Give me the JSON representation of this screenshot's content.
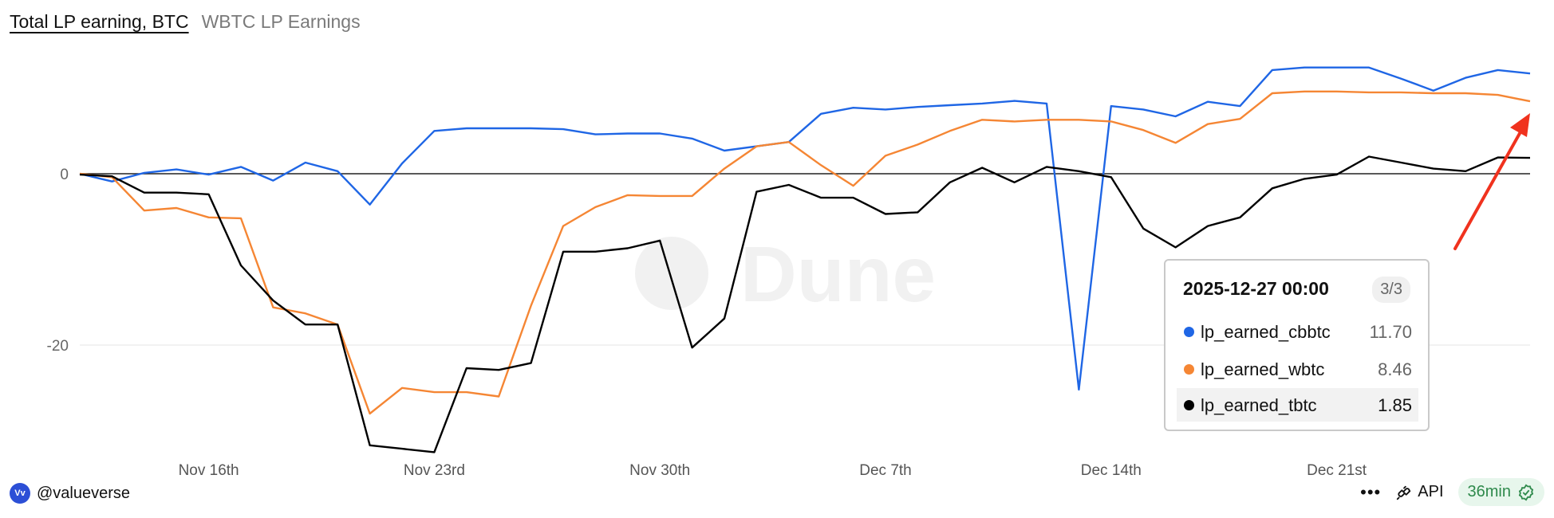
{
  "tabs": {
    "active": "Total LP earning, BTC",
    "other": "WBTC LP Earnings"
  },
  "watermark": "Dune",
  "tooltip": {
    "date": "2025-12-27 00:00",
    "page": "3/3",
    "rows": [
      {
        "name": "lp_earned_cbbtc",
        "value": "11.70",
        "color": "#1f66e5"
      },
      {
        "name": "lp_earned_wbtc",
        "value": "8.46",
        "color": "#f58634"
      },
      {
        "name": "lp_earned_tbtc",
        "value": "1.85",
        "color": "#000000"
      }
    ]
  },
  "footer": {
    "handle": "@valueverse",
    "avatar_text": "Vv",
    "api": "API",
    "freshness": "36min"
  },
  "chart_data": {
    "type": "line",
    "x": [
      "2025-11-12",
      "2025-11-13",
      "2025-11-14",
      "2025-11-15",
      "2025-11-16",
      "2025-11-17",
      "2025-11-18",
      "2025-11-19",
      "2025-11-20",
      "2025-11-21",
      "2025-11-22",
      "2025-11-23",
      "2025-11-24",
      "2025-11-25",
      "2025-11-26",
      "2025-11-27",
      "2025-11-28",
      "2025-11-29",
      "2025-11-30",
      "2025-12-01",
      "2025-12-02",
      "2025-12-03",
      "2025-12-04",
      "2025-12-05",
      "2025-12-06",
      "2025-12-07",
      "2025-12-08",
      "2025-12-09",
      "2025-12-10",
      "2025-12-11",
      "2025-12-12",
      "2025-12-13",
      "2025-12-14",
      "2025-12-15",
      "2025-12-16",
      "2025-12-17",
      "2025-12-18",
      "2025-12-19",
      "2025-12-20",
      "2025-12-21",
      "2025-12-22",
      "2025-12-23",
      "2025-12-24",
      "2025-12-25",
      "2025-12-26",
      "2025-12-27"
    ],
    "x_ticks": [
      {
        "date": "2025-11-16",
        "label": "Nov 16th"
      },
      {
        "date": "2025-11-23",
        "label": "Nov 23rd"
      },
      {
        "date": "2025-11-30",
        "label": "Nov 30th"
      },
      {
        "date": "2025-12-07",
        "label": "Dec 7th"
      },
      {
        "date": "2025-12-14",
        "label": "Dec 14th"
      },
      {
        "date": "2025-12-21",
        "label": "Dec 21st"
      }
    ],
    "y_ticks": [
      0,
      -20
    ],
    "ylim": [
      -33,
      14
    ],
    "grid": "horizontal",
    "series": [
      {
        "name": "lp_earned_cbbtc",
        "color": "#1f66e5",
        "values": [
          0,
          -0.9,
          0.1,
          0.5,
          -0.1,
          0.8,
          -0.8,
          1.3,
          0.3,
          -3.6,
          1.2,
          5.0,
          5.3,
          5.3,
          5.3,
          5.2,
          4.6,
          4.7,
          4.7,
          4.1,
          2.7,
          3.2,
          3.7,
          7.0,
          7.7,
          7.5,
          7.8,
          8.0,
          8.2,
          8.5,
          8.2,
          -25.2,
          7.9,
          7.5,
          6.7,
          8.4,
          7.9,
          12.1,
          12.4,
          12.4,
          12.4,
          11.1,
          9.7,
          11.2,
          12.1,
          11.7
        ]
      },
      {
        "name": "lp_earned_wbtc",
        "color": "#f58634",
        "values": [
          0,
          -0.4,
          -4.3,
          -4.0,
          -5.1,
          -5.2,
          -15.6,
          -16.3,
          -17.6,
          -28.0,
          -25.0,
          -25.5,
          -25.5,
          -26.0,
          -15.4,
          -6.1,
          -3.9,
          -2.5,
          -2.6,
          -2.6,
          0.6,
          3.2,
          3.7,
          1.0,
          -1.4,
          2.1,
          3.4,
          5.0,
          6.3,
          6.1,
          6.3,
          6.3,
          6.1,
          5.1,
          3.6,
          5.8,
          6.4,
          9.4,
          9.6,
          9.6,
          9.5,
          9.5,
          9.4,
          9.4,
          9.2,
          8.46
        ]
      },
      {
        "name": "lp_earned_tbtc",
        "color": "#000000",
        "values": [
          -0.1,
          -0.3,
          -2.2,
          -2.2,
          -2.4,
          -10.7,
          -14.8,
          -17.6,
          -17.6,
          -31.7,
          -32.1,
          -32.5,
          -22.7,
          -22.9,
          -22.1,
          -9.1,
          -9.1,
          -8.7,
          -7.8,
          -20.3,
          -16.9,
          -2.1,
          -1.3,
          -2.8,
          -2.8,
          -4.7,
          -4.5,
          -1.0,
          0.7,
          -1.0,
          0.8,
          0.3,
          -0.4,
          -6.4,
          -8.6,
          -6.1,
          -5.1,
          -1.7,
          -0.6,
          -0.1,
          2.0,
          1.3,
          0.6,
          0.3,
          1.9,
          1.85
        ]
      }
    ]
  }
}
